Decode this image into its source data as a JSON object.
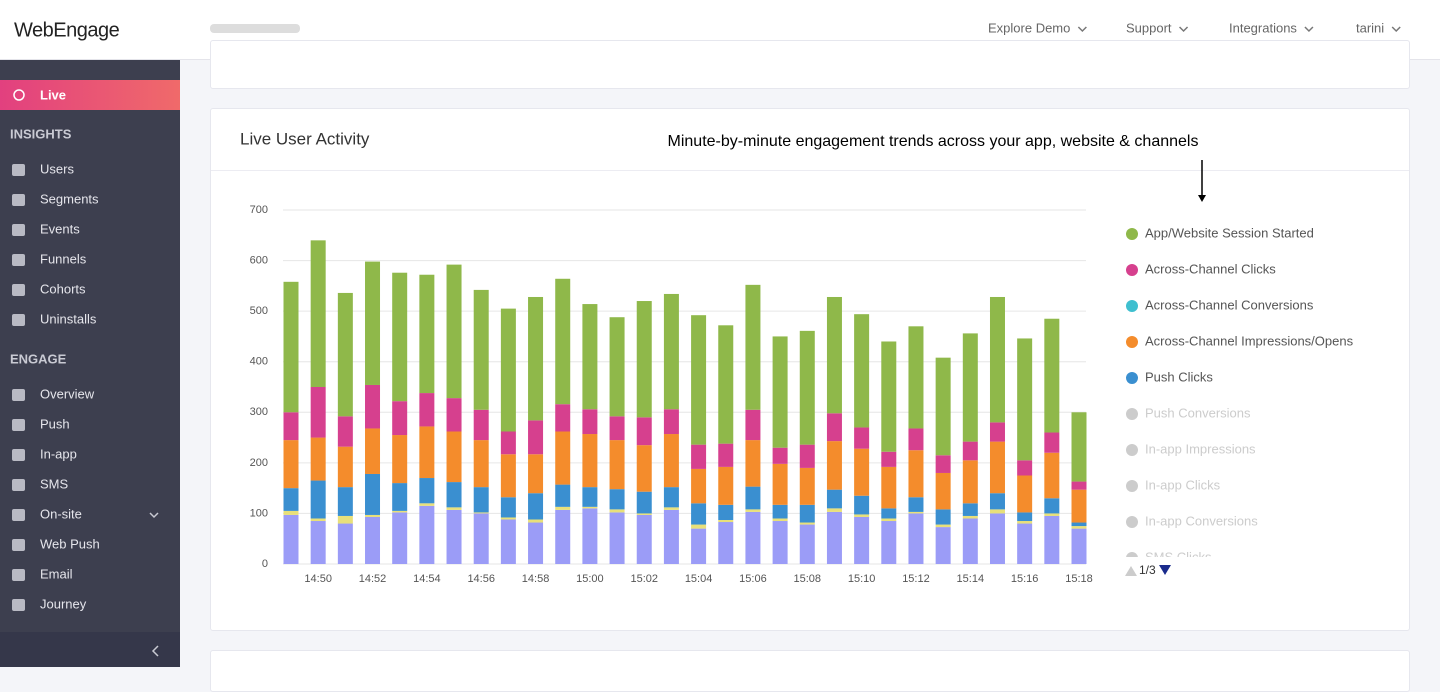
{
  "header": {
    "logo": "WebEngage",
    "nav": [
      "Explore Demo",
      "Support",
      "Integrations",
      "tarini"
    ]
  },
  "sidebar": {
    "live": "Live",
    "sections": [
      {
        "title": "INSIGHTS",
        "items": [
          "Users",
          "Segments",
          "Events",
          "Funnels",
          "Cohorts",
          "Uninstalls"
        ]
      },
      {
        "title": "ENGAGE",
        "items": [
          "Overview",
          "Push",
          "In-app",
          "SMS",
          "On-site",
          "Web Push",
          "Email",
          "Journey"
        ]
      }
    ]
  },
  "card": {
    "title": "Live User Activity",
    "annotation": "Minute-by-minute engagement trends across your app, website & channels"
  },
  "chart_data": {
    "type": "stacked_bar",
    "categories": [
      null,
      "14:50",
      null,
      "14:52",
      null,
      "14:54",
      null,
      "14:56",
      null,
      "14:58",
      null,
      "15:00",
      null,
      "15:02",
      null,
      "15:04",
      null,
      "15:06",
      null,
      "15:08",
      null,
      "15:10",
      null,
      "15:12",
      null,
      "15:14",
      null,
      "15:16",
      null,
      "15:18"
    ],
    "series": [
      {
        "color": "#9b9cf7",
        "values": [
          97,
          85,
          80,
          93,
          102,
          115,
          107,
          100,
          88,
          82,
          107,
          110,
          102,
          97,
          107,
          70,
          83,
          103,
          85,
          78,
          103,
          93,
          85,
          100,
          73,
          90,
          100,
          80,
          95,
          70
        ]
      },
      {
        "color": "#e8e07a",
        "values": [
          8,
          5,
          15,
          4,
          3,
          5,
          5,
          2,
          4,
          6,
          6,
          3,
          6,
          3,
          5,
          8,
          4,
          5,
          5,
          4,
          7,
          5,
          5,
          3,
          5,
          5,
          8,
          5,
          5,
          5
        ]
      },
      {
        "name": "Push Clicks",
        "color": "#3a8fd0",
        "values": [
          45,
          75,
          57,
          81,
          55,
          50,
          50,
          50,
          40,
          52,
          44,
          39,
          40,
          43,
          40,
          42,
          30,
          45,
          27,
          35,
          37,
          37,
          20,
          29,
          30,
          25,
          32,
          17,
          30,
          7
        ]
      },
      {
        "name": "Across-Channel Impressions/Opens",
        "color": "#f48c2c",
        "values": [
          95,
          85,
          80,
          90,
          95,
          102,
          100,
          93,
          85,
          77,
          105,
          105,
          97,
          92,
          105,
          68,
          75,
          92,
          81,
          73,
          96,
          93,
          82,
          93,
          72,
          85,
          102,
          73,
          90,
          65
        ]
      },
      {
        "name": "Across-Channel Conversions",
        "color": "#3fbfcf",
        "values": [
          0,
          0,
          0,
          0,
          0,
          0,
          0,
          0,
          0,
          0,
          0,
          0,
          0,
          0,
          0,
          0,
          0,
          0,
          0,
          0,
          0,
          0,
          0,
          0,
          0,
          0,
          0,
          0,
          0,
          0
        ]
      },
      {
        "name": "Across-Channel Clicks",
        "color": "#d6408e",
        "values": [
          55,
          100,
          60,
          86,
          67,
          66,
          66,
          60,
          45,
          67,
          54,
          49,
          47,
          55,
          49,
          48,
          46,
          60,
          32,
          46,
          55,
          42,
          30,
          43,
          35,
          37,
          38,
          30,
          40,
          16
        ]
      },
      {
        "name": "App/Website Session Started",
        "color": "#8fb84a",
        "values": [
          258,
          290,
          244,
          244,
          254,
          234,
          264,
          237,
          243,
          244,
          248,
          208,
          196,
          230,
          228,
          256,
          234,
          247,
          220,
          225,
          230,
          224,
          218,
          202,
          193,
          214,
          248,
          241,
          225,
          137
        ]
      }
    ],
    "inactive_series": [
      "Push Conversions",
      "In-app Impressions",
      "In-app Clicks",
      "In-app Conversions",
      "SMS Clicks"
    ],
    "inactive_color": "#cccccc",
    "legend_page": "1/3",
    "ylim": [
      0,
      700
    ],
    "yticks": [
      0,
      100,
      200,
      300,
      400,
      500,
      600,
      700
    ],
    "grid": true
  }
}
